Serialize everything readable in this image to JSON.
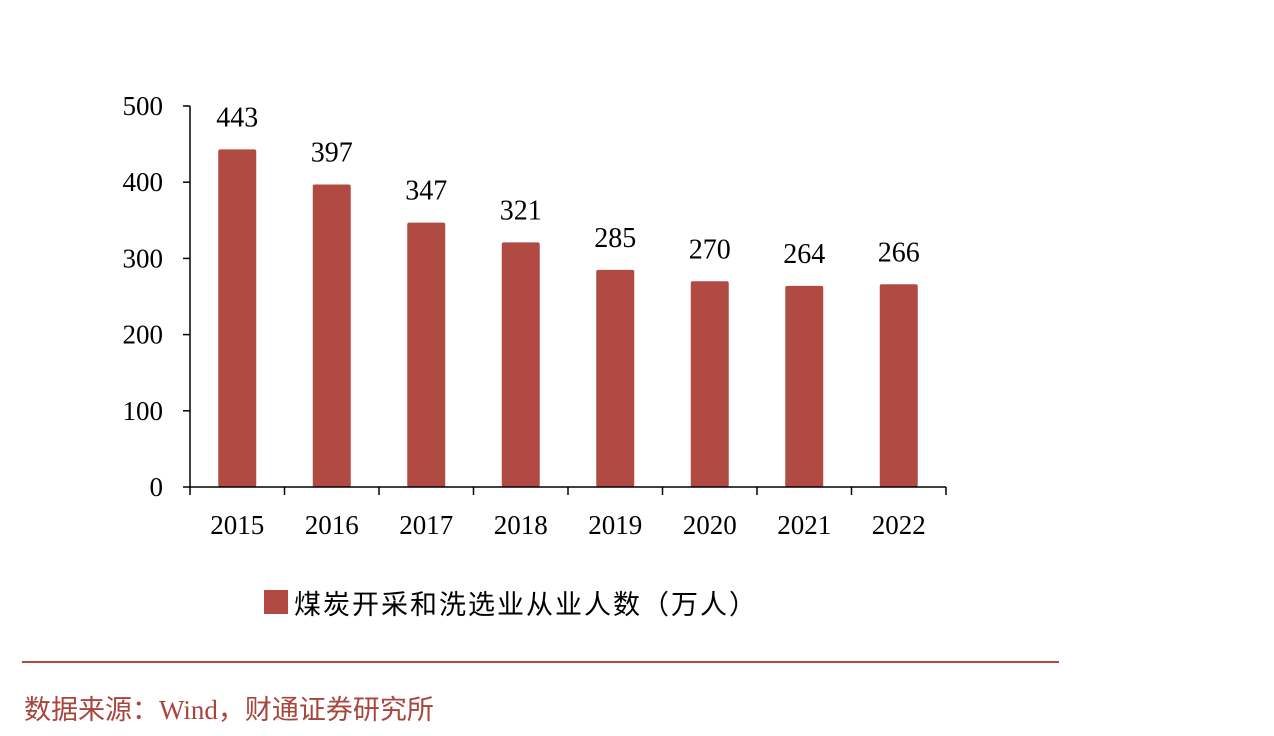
{
  "chart_data": {
    "type": "bar",
    "categories": [
      "2015",
      "2016",
      "2017",
      "2018",
      "2019",
      "2020",
      "2021",
      "2022"
    ],
    "series": [
      {
        "name": "煤炭开采和洗选业从业人数（万人）",
        "values": [
          443,
          397,
          347,
          321,
          285,
          270,
          264,
          266
        ]
      }
    ],
    "title": "",
    "xlabel": "",
    "ylabel": "",
    "ylim": [
      0,
      500
    ],
    "yticks": [
      0,
      100,
      200,
      300,
      400,
      500
    ],
    "data_labels": [
      "443",
      "397",
      "347",
      "321",
      "285",
      "270",
      "264",
      "266"
    ],
    "legend_position": "bottom",
    "grid": false,
    "bar_color": "#B24A44"
  },
  "source": "数据来源：Wind，财通证券研究所",
  "colors": {
    "accent": "#B24A44",
    "divider": "#B24A44",
    "source_text": "#A8453D"
  }
}
